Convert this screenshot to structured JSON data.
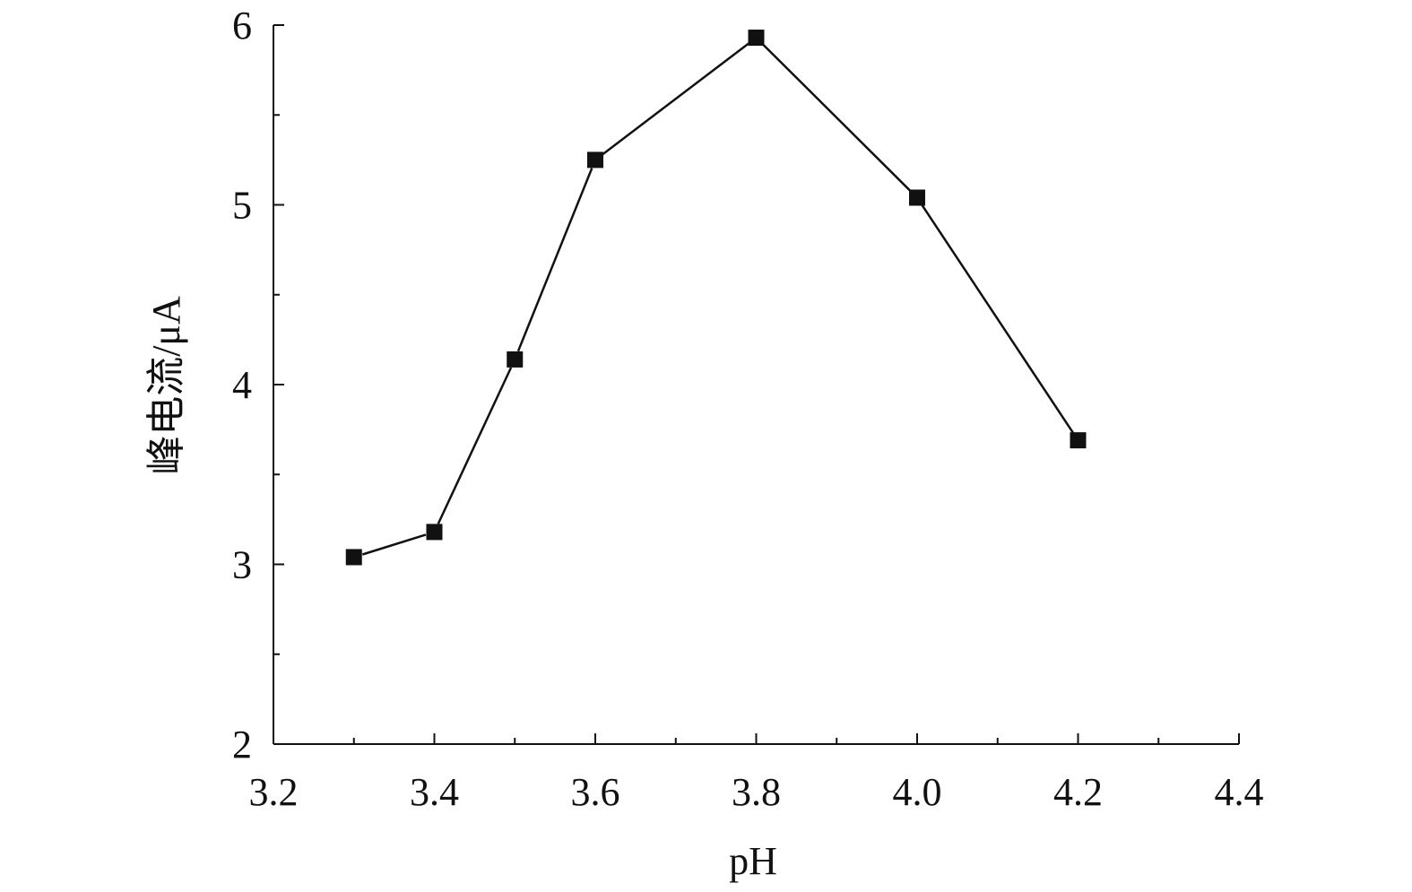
{
  "chart_data": {
    "type": "line",
    "title": "",
    "xlabel": "pH",
    "ylabel": "峰电流/μA",
    "xlim": [
      3.2,
      4.4
    ],
    "ylim": [
      2,
      6
    ],
    "xticks": [
      "3.2",
      "3.4",
      "3.6",
      "3.8",
      "4.0",
      "4.2",
      "4.4"
    ],
    "xtick_values": [
      3.2,
      3.4,
      3.6,
      3.8,
      4.0,
      4.2,
      4.4
    ],
    "xminor_values": [
      3.3,
      3.5,
      3.7,
      3.9,
      4.1,
      4.3
    ],
    "yticks": [
      "2",
      "3",
      "4",
      "5",
      "6"
    ],
    "ytick_values": [
      2,
      3,
      4,
      5,
      6
    ],
    "yminor_values": [
      2.5,
      3.5,
      4.5,
      5.5
    ],
    "grid": false,
    "series": [
      {
        "marker": "square",
        "color": "#111111",
        "x": [
          3.3,
          3.4,
          3.5,
          3.6,
          3.8,
          4.0,
          4.2
        ],
        "y": [
          3.04,
          3.18,
          4.14,
          5.25,
          5.93,
          5.04,
          3.69
        ],
        "connected_to_next": [
          true,
          true,
          true,
          true,
          true,
          true,
          false
        ]
      }
    ]
  }
}
